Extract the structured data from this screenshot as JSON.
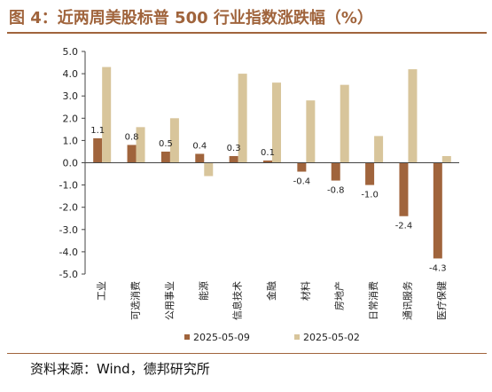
{
  "header": {
    "title": "图 4：近两周美股标普 500 行业指数涨跌幅（%）"
  },
  "footer": {
    "source": "资料来源：Wind，德邦研究所"
  },
  "colors": {
    "series1": "#a0643c",
    "series2": "#d8c59b",
    "title": "#a0643c"
  },
  "chart_data": {
    "type": "bar",
    "categories": [
      "工业",
      "可选消费",
      "公用事业",
      "能源",
      "信息技术",
      "金融",
      "材料",
      "房地产",
      "日常消费",
      "通讯服务",
      "医疗保健"
    ],
    "series": [
      {
        "name": "2025-05-09",
        "values": [
          1.1,
          0.8,
          0.5,
          0.4,
          0.3,
          0.1,
          -0.4,
          -0.8,
          -1.0,
          -2.4,
          -4.3
        ],
        "labels": [
          "1.1",
          "0.8",
          "0.5",
          "0.4",
          "0.3",
          "0.1",
          "-0.4",
          "-0.8",
          "-1.0",
          "-2.4",
          "-4.3"
        ]
      },
      {
        "name": "2025-05-02",
        "values": [
          4.3,
          1.6,
          2.0,
          -0.6,
          4.0,
          3.6,
          2.8,
          3.5,
          1.2,
          4.2,
          0.3
        ]
      }
    ],
    "ylim": [
      -5.0,
      5.0
    ],
    "yticks": [
      "5.0",
      "4.0",
      "3.0",
      "2.0",
      "1.0",
      "0.0",
      "-1.0",
      "-2.0",
      "-3.0",
      "-4.0",
      "-5.0"
    ],
    "legend": "bottom",
    "grid": false
  }
}
